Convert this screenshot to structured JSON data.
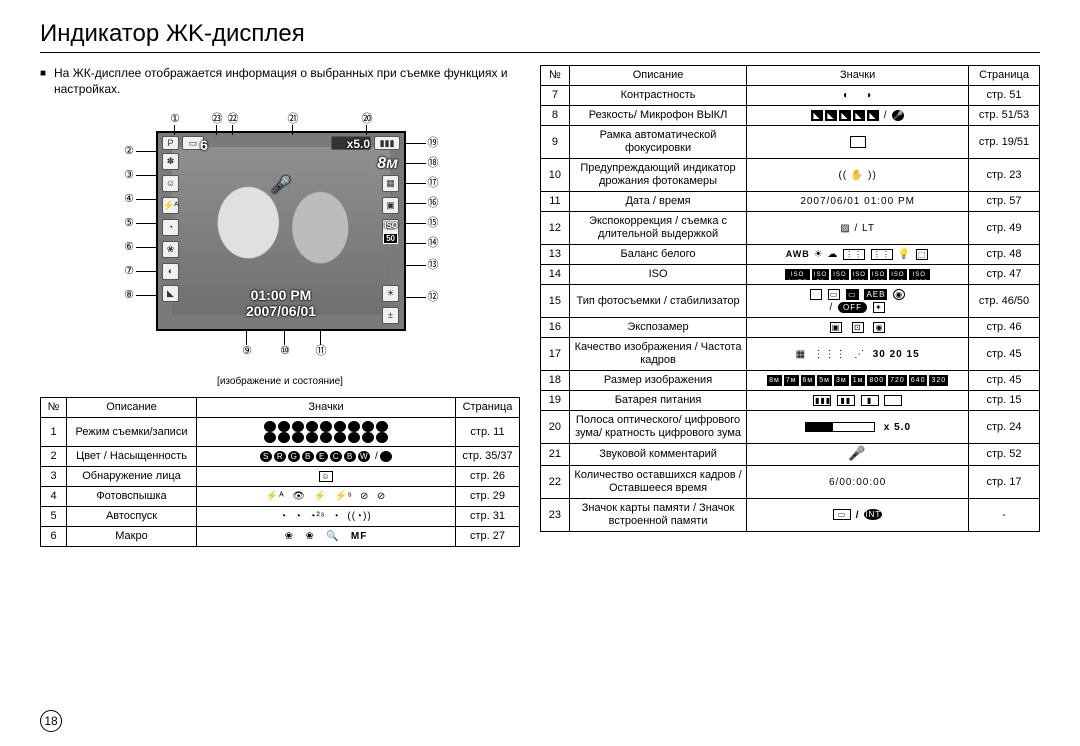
{
  "title": "Индикатор ЖK-дисплея",
  "intro": "На ЖК-дисплее отображается информация о выбранных при съемке функциях и настройках.",
  "lcd_caption": "[изображение и состояние]",
  "overlay": {
    "time": "01:00 PM",
    "date": "2007/06/01",
    "shots": "6",
    "zoom": "x5.0",
    "size": "8м",
    "iso_label": "ISO",
    "iso_value": "50"
  },
  "page_number": "18",
  "table_headers": {
    "num": "№",
    "desc": "Описание",
    "icons": "Значки",
    "page": "Страница"
  },
  "left_rows": [
    {
      "n": "1",
      "desc": "Режим съемки/записи",
      "icons": "modes-grid",
      "page": "стр. 11"
    },
    {
      "n": "2",
      "desc": "Цвет / Насыщенность",
      "icons": "color-chips",
      "page": "стр. 35/37"
    },
    {
      "n": "3",
      "desc": "Обнаружение лица",
      "icons": "face",
      "page": "стр. 26"
    },
    {
      "n": "4",
      "desc": "Фотовспышка",
      "icons": "flash",
      "page": "стр. 29"
    },
    {
      "n": "5",
      "desc": "Автоспуск",
      "icons": "timer",
      "page": "стр. 31"
    },
    {
      "n": "6",
      "desc": "Макро",
      "icons": "macro",
      "page": "стр. 27"
    }
  ],
  "right_rows": [
    {
      "n": "7",
      "desc": "Контрастность",
      "icons": "contrast",
      "page": "стр. 51"
    },
    {
      "n": "8",
      "desc": "Резкость/ Микрофон ВЫКЛ",
      "icons": "sharpness",
      "page": "стр. 51/53"
    },
    {
      "n": "9",
      "desc": "Рамка автоматической фокусировки",
      "icons": "af-frame",
      "page": "стр. 19/51"
    },
    {
      "n": "10",
      "desc": "Предупреждающий индикатор дрожания фотокамеры",
      "icons": "shake",
      "page": "стр. 23"
    },
    {
      "n": "11",
      "desc": "Дата / время",
      "icons_text": "2007/06/01   01:00 PM",
      "page": "стр. 57"
    },
    {
      "n": "12",
      "desc": "Экспокоррекция / съемка с длительной выдержкой",
      "icons_text": "▨ / LT",
      "page": "стр. 49"
    },
    {
      "n": "13",
      "desc": "Баланс белого",
      "icons": "wb",
      "page": "стр. 48"
    },
    {
      "n": "14",
      "desc": "ISO",
      "icons": "iso",
      "page": "стр. 47"
    },
    {
      "n": "15",
      "desc": "Тип фотосъемки / стабилизатор",
      "icons": "drive",
      "page": "стр. 46/50"
    },
    {
      "n": "16",
      "desc": "Экспозамер",
      "icons": "meter",
      "page": "стр. 46"
    },
    {
      "n": "17",
      "desc": "Качество изображения / Частота кадров",
      "icons": "quality",
      "page": "стр. 45"
    },
    {
      "n": "18",
      "desc": "Размер изображения",
      "icons": "imgsize",
      "page": "стр. 45"
    },
    {
      "n": "19",
      "desc": "Батарея питания",
      "icons": "battery",
      "page": "стр. 15"
    },
    {
      "n": "20",
      "desc": "Полоса оптического/ цифрового зума/ кратность цифрового зума",
      "icons": "zoom",
      "page": "стр. 24"
    },
    {
      "n": "21",
      "desc": "Звуковой комментарий",
      "icons": "voice",
      "page": "стр. 52"
    },
    {
      "n": "22",
      "desc": "Количество оставшихся кадров / Оставшееся время",
      "icons_text": "6/00:00:00",
      "page": "стр. 17"
    },
    {
      "n": "23",
      "desc": "Значок карты памяти / Значок встроенной памяти",
      "icons": "card",
      "page": "-"
    }
  ],
  "callouts": {
    "c1": "①",
    "c2": "②",
    "c3": "③",
    "c4": "④",
    "c5": "⑤",
    "c6": "⑥",
    "c7": "⑦",
    "c8": "⑧",
    "c9": "⑨",
    "c10": "⑩",
    "c11": "⑪",
    "c12": "⑫",
    "c13": "⑬",
    "c14": "⑭",
    "c15": "⑮",
    "c16": "⑯",
    "c17": "⑰",
    "c18": "⑱",
    "c19": "⑲",
    "c20": "⑳",
    "c21": "㉑",
    "c22": "㉒",
    "c23": "㉓"
  }
}
